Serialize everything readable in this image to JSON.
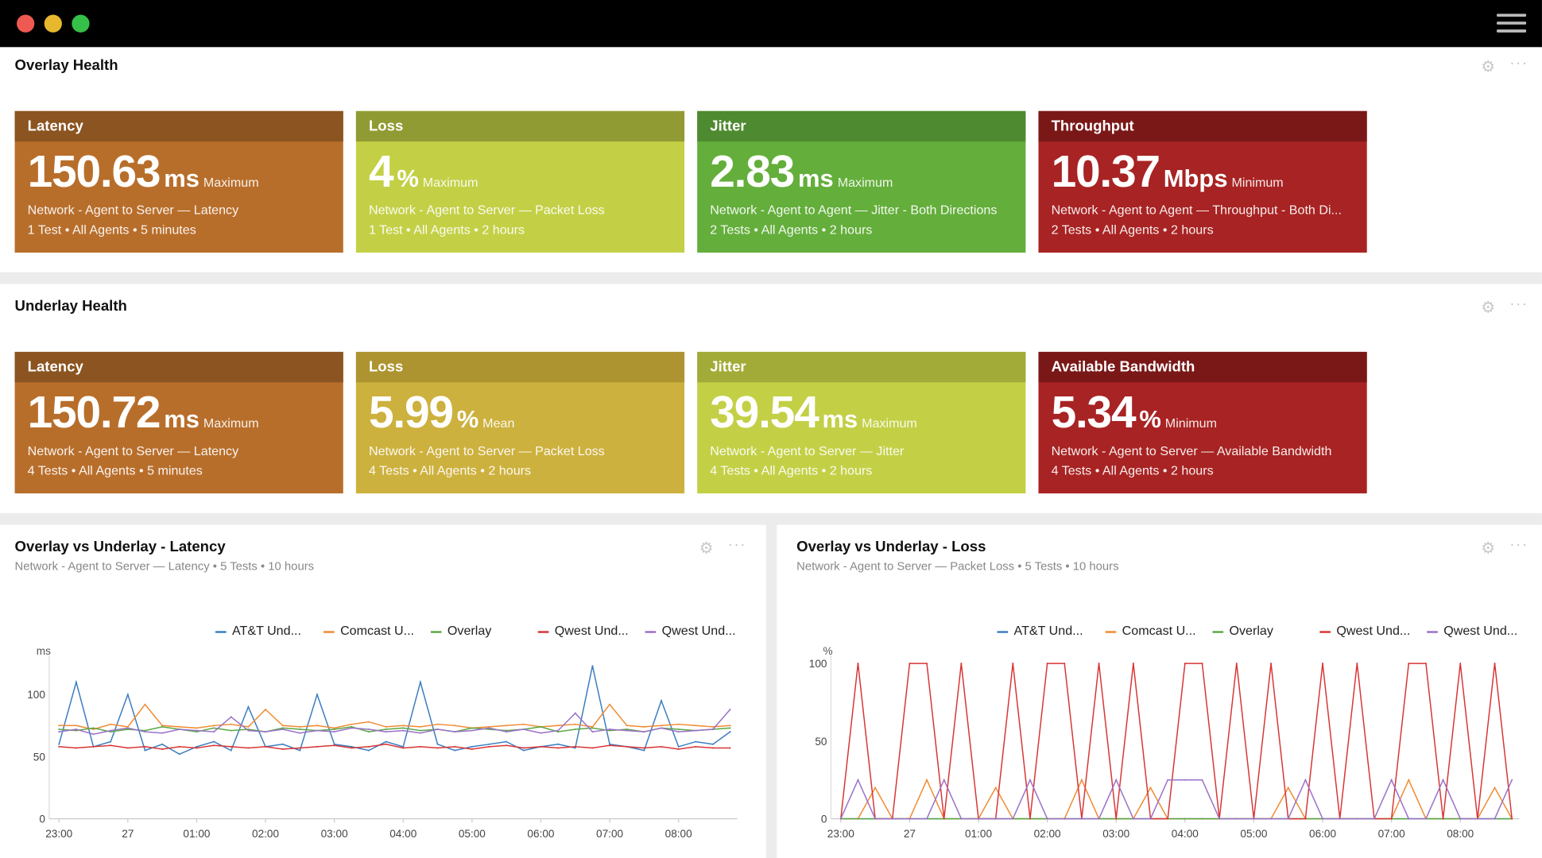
{
  "window": {
    "controls": {
      "close": "#ee5a52",
      "minimize": "#e7b72e",
      "maximize": "#35c149"
    },
    "menu_icon": "hamburger-icon"
  },
  "overlay": {
    "title": "Overlay Health",
    "tiles": [
      {
        "header": "Latency",
        "value": "150.63",
        "unit": "ms",
        "agg": "Maximum",
        "line1": "Network - Agent to Server — Latency",
        "line2": "1 Test • All Agents • 5 minutes",
        "header_color": "#8b5420",
        "body_color": "#b86e2b"
      },
      {
        "header": "Loss",
        "value": "4",
        "unit": "%",
        "agg": "Maximum",
        "line1": "Network - Agent to Server — Packet Loss",
        "line2": "1 Test • All Agents • 2 hours",
        "header_color": "#919b33",
        "body_color": "#c3d046"
      },
      {
        "header": "Jitter",
        "value": "2.83",
        "unit": "ms",
        "agg": "Maximum",
        "line1": "Network - Agent to Agent — Jitter - Both Directions",
        "line2": "2 Tests • All Agents • 2 hours",
        "header_color": "#4e8a2f",
        "body_color": "#64ae3b"
      },
      {
        "header": "Throughput",
        "value": "10.37",
        "unit": "Mbps",
        "agg": "Minimum",
        "line1": "Network - Agent to Agent — Throughput - Both Di...",
        "line2": "2 Tests • All Agents • 2 hours",
        "header_color": "#7a1818",
        "body_color": "#a82323"
      }
    ]
  },
  "underlay": {
    "title": "Underlay Health",
    "tiles": [
      {
        "header": "Latency",
        "value": "150.72",
        "unit": "ms",
        "agg": "Maximum",
        "line1": "Network - Agent to Server — Latency",
        "line2": "4 Tests • All Agents • 5 minutes",
        "header_color": "#8b5420",
        "body_color": "#b86e2b"
      },
      {
        "header": "Loss",
        "value": "5.99",
        "unit": "%",
        "agg": "Mean",
        "line1": "Network - Agent to Server — Packet Loss",
        "line2": "4 Tests • All Agents • 2 hours",
        "header_color": "#ad9430",
        "body_color": "#cdb13e"
      },
      {
        "header": "Jitter",
        "value": "39.54",
        "unit": "ms",
        "agg": "Maximum",
        "line1": "Network - Agent to Server — Jitter",
        "line2": "4 Tests • All Agents • 2 hours",
        "header_color": "#a2ab37",
        "body_color": "#c3d046"
      },
      {
        "header": "Available Bandwidth",
        "value": "5.34",
        "unit": "%",
        "agg": "Minimum",
        "line1": "Network - Agent to Server — Available Bandwidth",
        "line2": "4 Tests • All Agents • 2 hours",
        "header_color": "#7a1818",
        "body_color": "#a82323"
      }
    ]
  },
  "chart_data": [
    {
      "type": "line",
      "title": "Overlay vs Underlay - Latency",
      "subtitle": "Network - Agent to Server — Latency • 5 Tests • 10 hours",
      "ylabel": "ms",
      "ylim": [
        0,
        125
      ],
      "yticks": [
        "0",
        "50",
        "100"
      ],
      "xticks": [
        "23:00",
        "27",
        "01:00",
        "02:00",
        "03:00",
        "04:00",
        "05:00",
        "06:00",
        "07:00",
        "08:00"
      ],
      "grid": false,
      "legend": "top-right",
      "x": [
        "23:00",
        "23:15",
        "23:30",
        "23:45",
        "00:00",
        "00:15",
        "00:30",
        "00:45",
        "01:00",
        "01:15",
        "01:30",
        "01:45",
        "02:00",
        "02:15",
        "02:30",
        "02:45",
        "03:00",
        "03:15",
        "03:30",
        "03:45",
        "04:00",
        "04:15",
        "04:30",
        "04:45",
        "05:00",
        "05:15",
        "05:30",
        "05:45",
        "06:00",
        "06:15",
        "06:30",
        "06:45",
        "07:00",
        "07:15",
        "07:30",
        "07:45",
        "08:00",
        "08:15",
        "08:30",
        "08:45"
      ],
      "series": [
        {
          "name": "AT&T Und...",
          "color": "#3a7dc0",
          "values": [
            60,
            110,
            58,
            62,
            100,
            55,
            60,
            52,
            58,
            62,
            55,
            90,
            58,
            60,
            55,
            100,
            60,
            58,
            55,
            62,
            58,
            110,
            60,
            55,
            58,
            60,
            62,
            55,
            58,
            60,
            57,
            123,
            60,
            58,
            55,
            95,
            58,
            62,
            60,
            70
          ]
        },
        {
          "name": "Comcast U...",
          "color": "#f08a30",
          "values": [
            75,
            75,
            72,
            76,
            74,
            92,
            75,
            74,
            73,
            75,
            76,
            74,
            88,
            75,
            74,
            75,
            73,
            76,
            78,
            74,
            75,
            74,
            76,
            75,
            73,
            74,
            75,
            76,
            74,
            75,
            76,
            74,
            92,
            75,
            74,
            75,
            76,
            75,
            74,
            75
          ]
        },
        {
          "name": "Overlay",
          "color": "#5aa845",
          "values": [
            72,
            71,
            73,
            70,
            72,
            71,
            74,
            72,
            70,
            73,
            71,
            72,
            70,
            73,
            72,
            71,
            72,
            74,
            70,
            72,
            73,
            71,
            72,
            70,
            73,
            72,
            71,
            72,
            74,
            70,
            72,
            73,
            71,
            72,
            70,
            73,
            72,
            71,
            72,
            73
          ]
        },
        {
          "name": "Qwest Und...",
          "color": "#d83535",
          "values": [
            58,
            57,
            58,
            59,
            57,
            58,
            56,
            58,
            57,
            59,
            58,
            57,
            58,
            56,
            57,
            58,
            59,
            57,
            58,
            60,
            57,
            58,
            57,
            58,
            56,
            58,
            59,
            57,
            58,
            57,
            58,
            57,
            59,
            58,
            57,
            58,
            56,
            58,
            57,
            57
          ]
        },
        {
          "name": "Qwest Und...",
          "color": "#9a70c8",
          "values": [
            70,
            72,
            68,
            71,
            73,
            70,
            69,
            72,
            71,
            70,
            82,
            71,
            70,
            72,
            69,
            71,
            70,
            73,
            72,
            70,
            71,
            69,
            72,
            70,
            71,
            73,
            70,
            72,
            69,
            71,
            85,
            70,
            72,
            71,
            70,
            73,
            70,
            71,
            72,
            88
          ]
        }
      ]
    },
    {
      "type": "line",
      "title": "Overlay vs Underlay - Loss",
      "subtitle": "Network - Agent to Server — Packet Loss • 5 Tests • 10 hours",
      "ylabel": "%",
      "ylim": [
        0,
        100
      ],
      "yticks": [
        "0",
        "50",
        "100"
      ],
      "xticks": [
        "23:00",
        "27",
        "01:00",
        "02:00",
        "03:00",
        "04:00",
        "05:00",
        "06:00",
        "07:00",
        "08:00"
      ],
      "grid": false,
      "legend": "top-right",
      "x": [
        "23:00",
        "23:15",
        "23:30",
        "23:45",
        "00:00",
        "00:15",
        "00:30",
        "00:45",
        "01:00",
        "01:15",
        "01:30",
        "01:45",
        "02:00",
        "02:15",
        "02:30",
        "02:45",
        "03:00",
        "03:15",
        "03:30",
        "03:45",
        "04:00",
        "04:15",
        "04:30",
        "04:45",
        "05:00",
        "05:15",
        "05:30",
        "05:45",
        "06:00",
        "06:15",
        "06:30",
        "06:45",
        "07:00",
        "07:15",
        "07:30",
        "07:45",
        "08:00",
        "08:15",
        "08:30",
        "08:45"
      ],
      "series": [
        {
          "name": "AT&T Und...",
          "color": "#3a7dc0",
          "values": [
            0,
            0,
            0,
            0,
            0,
            0,
            0,
            0,
            0,
            0,
            0,
            0,
            0,
            0,
            0,
            0,
            0,
            0,
            0,
            0,
            0,
            0,
            0,
            0,
            0,
            0,
            0,
            0,
            0,
            0,
            0,
            0,
            0,
            0,
            0,
            0,
            0,
            0,
            0,
            0
          ]
        },
        {
          "name": "Comcast U...",
          "color": "#f08a30",
          "values": [
            0,
            0,
            20,
            0,
            0,
            25,
            0,
            0,
            0,
            20,
            0,
            0,
            0,
            0,
            25,
            0,
            0,
            0,
            20,
            0,
            0,
            0,
            0,
            0,
            0,
            0,
            20,
            0,
            0,
            0,
            0,
            0,
            0,
            25,
            0,
            0,
            0,
            0,
            20,
            0
          ]
        },
        {
          "name": "Overlay",
          "color": "#5aa845",
          "values": [
            0,
            0,
            0,
            0,
            0,
            0,
            0,
            0,
            0,
            0,
            0,
            0,
            0,
            0,
            0,
            0,
            0,
            0,
            0,
            0,
            0,
            0,
            0,
            0,
            0,
            0,
            0,
            0,
            0,
            0,
            0,
            0,
            0,
            0,
            0,
            0,
            0,
            0,
            0,
            0
          ]
        },
        {
          "name": "Qwest Und...",
          "color": "#d83535",
          "values": [
            0,
            100,
            0,
            0,
            100,
            100,
            0,
            100,
            0,
            0,
            100,
            0,
            100,
            100,
            0,
            100,
            0,
            100,
            0,
            0,
            100,
            100,
            0,
            100,
            0,
            100,
            0,
            0,
            100,
            0,
            100,
            0,
            0,
            100,
            100,
            0,
            100,
            0,
            100,
            0
          ]
        },
        {
          "name": "Qwest Und...",
          "color": "#9a70c8",
          "values": [
            0,
            25,
            0,
            0,
            0,
            0,
            25,
            0,
            0,
            0,
            0,
            25,
            0,
            0,
            0,
            0,
            25,
            0,
            0,
            25,
            25,
            25,
            0,
            0,
            0,
            0,
            0,
            25,
            0,
            0,
            0,
            0,
            25,
            0,
            0,
            25,
            0,
            0,
            0,
            25
          ]
        }
      ]
    }
  ]
}
